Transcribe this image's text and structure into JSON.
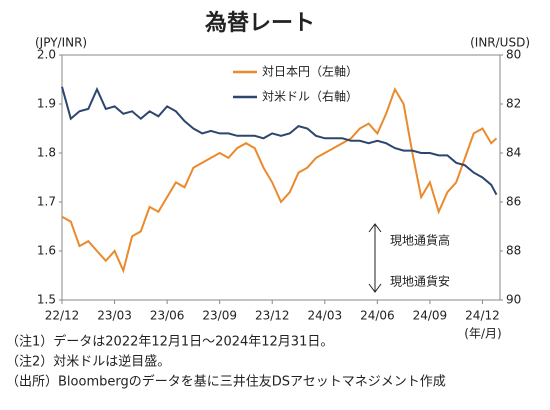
{
  "chart_data": {
    "type": "line",
    "title": "為替レート",
    "y_label": "(JPY/INR)",
    "y2_label": "(INR/USD)",
    "x_unit": "(年/月)",
    "x": [
      0,
      0.5,
      1,
      1.5,
      2,
      2.5,
      3,
      3.5,
      4,
      4.5,
      5,
      5.5,
      6,
      6.5,
      7,
      7.5,
      8,
      8.5,
      9,
      9.5,
      10,
      10.5,
      11,
      11.5,
      12,
      12.5,
      13,
      13.5,
      14,
      14.5,
      15,
      15.5,
      16,
      16.5,
      17,
      17.5,
      18,
      18.5,
      19,
      19.5,
      20,
      20.5,
      21,
      21.5,
      22,
      22.5,
      23,
      23.5,
      24,
      24.5,
      24.8
    ],
    "xlim": [
      0,
      25
    ],
    "xticks": [
      {
        "value": 0,
        "label": "22/12"
      },
      {
        "value": 3,
        "label": "23/03"
      },
      {
        "value": 6,
        "label": "23/06"
      },
      {
        "value": 9,
        "label": "23/09"
      },
      {
        "value": 12,
        "label": "23/12"
      },
      {
        "value": 15,
        "label": "24/03"
      },
      {
        "value": 18,
        "label": "24/06"
      },
      {
        "value": 21,
        "label": "24/09"
      },
      {
        "value": 24,
        "label": "24/12"
      }
    ],
    "ylim": [
      1.5,
      2.0
    ],
    "yticks": [
      1.5,
      1.6,
      1.7,
      1.8,
      1.9,
      {
        "value": 2,
        "label": "2.0"
      }
    ],
    "y2lim": [
      90,
      80
    ],
    "y2ticks": [
      80,
      82,
      84,
      86,
      88,
      90
    ],
    "series": [
      {
        "name": "対日本円（左軸）",
        "color": "#ea8a2c",
        "axis": "y",
        "values": [
          1.67,
          1.66,
          1.61,
          1.62,
          1.6,
          1.58,
          1.6,
          1.56,
          1.63,
          1.64,
          1.69,
          1.68,
          1.71,
          1.74,
          1.73,
          1.77,
          1.78,
          1.79,
          1.8,
          1.79,
          1.81,
          1.82,
          1.81,
          1.77,
          1.74,
          1.7,
          1.72,
          1.76,
          1.77,
          1.79,
          1.8,
          1.81,
          1.82,
          1.83,
          1.85,
          1.86,
          1.84,
          1.88,
          1.93,
          1.9,
          1.8,
          1.71,
          1.74,
          1.68,
          1.72,
          1.74,
          1.79,
          1.84,
          1.85,
          1.82,
          1.83
        ]
      },
      {
        "name": "対米ドル（右軸）",
        "color": "#2c4670",
        "axis": "y2",
        "values": [
          81.3,
          82.6,
          82.3,
          82.2,
          81.4,
          82.2,
          82.1,
          82.4,
          82.3,
          82.6,
          82.3,
          82.5,
          82.1,
          82.3,
          82.7,
          83.0,
          83.2,
          83.1,
          83.2,
          83.2,
          83.3,
          83.3,
          83.3,
          83.4,
          83.2,
          83.3,
          83.2,
          82.9,
          83.0,
          83.3,
          83.4,
          83.4,
          83.4,
          83.5,
          83.5,
          83.6,
          83.5,
          83.6,
          83.8,
          83.9,
          83.9,
          84.0,
          84.0,
          84.1,
          84.1,
          84.4,
          84.5,
          84.8,
          85.0,
          85.3,
          85.7
        ]
      }
    ],
    "annotations": [
      "現地通貨高",
      "現地通貨安"
    ],
    "notes": [
      "（注1）データは2022年12月1日～2024年12月31日。",
      "（注2）対米ドルは逆目盛。",
      "（出所）Bloombergのデータを基に三井住友DSアセットマネジメント作成"
    ]
  }
}
